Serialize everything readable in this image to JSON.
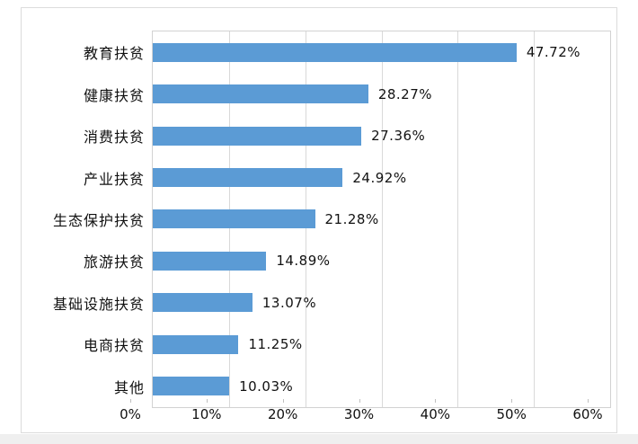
{
  "page": {
    "background_color": "#ffffff",
    "bottom_strip_color": "#efefef"
  },
  "chart": {
    "outer_border_color": "#dcdcdc",
    "plot_border_color": "#d2d2d2",
    "gridline_color": "#d9d9d9",
    "tick_color": "#bfbfbf",
    "bar_color": "#5b9bd5",
    "text_color": "#111111"
  },
  "chart_data": {
    "type": "bar",
    "orientation": "horizontal",
    "title": "",
    "xlabel": "",
    "ylabel": "",
    "legend": "none",
    "grid": true,
    "xlim": [
      0,
      60
    ],
    "x_tick_values": [
      0,
      10,
      20,
      30,
      40,
      50,
      60
    ],
    "x_tick_labels": [
      "0%",
      "10%",
      "20%",
      "30%",
      "40%",
      "50%",
      "60%"
    ],
    "categories": [
      "教育扶贫",
      "健康扶贫",
      "消费扶贫",
      "产业扶贫",
      "生态保护扶贫",
      "旅游扶贫",
      "基础设施扶贫",
      "电商扶贫",
      "其他"
    ],
    "values": [
      47.72,
      28.27,
      27.36,
      24.92,
      21.28,
      14.89,
      13.07,
      11.25,
      10.03
    ],
    "value_labels": [
      "47.72%",
      "28.27%",
      "27.36%",
      "24.92%",
      "21.28%",
      "14.89%",
      "13.07%",
      "11.25%",
      "10.03%"
    ]
  }
}
